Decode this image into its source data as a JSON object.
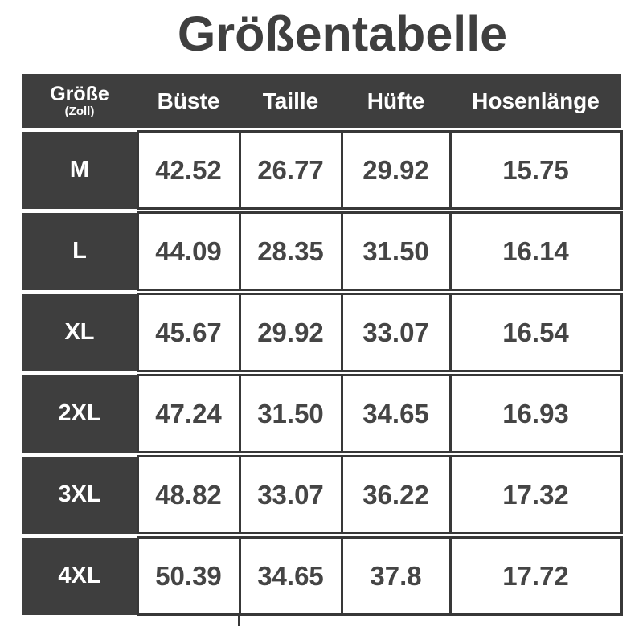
{
  "title": "Größentabelle",
  "table": {
    "header": {
      "size_column": {
        "label": "Größe",
        "unit": "(Zoll)"
      },
      "columns": [
        "Büste",
        "Taille",
        "Hüfte",
        "Hosenlänge"
      ]
    },
    "rows": [
      {
        "size": "M",
        "values": [
          "42.52",
          "26.77",
          "29.92",
          "15.75"
        ]
      },
      {
        "size": "L",
        "values": [
          "44.09",
          "28.35",
          "31.50",
          "16.14"
        ]
      },
      {
        "size": "XL",
        "values": [
          "45.67",
          "29.92",
          "33.07",
          "16.54"
        ]
      },
      {
        "size": "2XL",
        "values": [
          "47.24",
          "31.50",
          "34.65",
          "16.93"
        ]
      },
      {
        "size": "3XL",
        "values": [
          "48.82",
          "33.07",
          "36.22",
          "17.32"
        ]
      },
      {
        "size": "4XL",
        "values": [
          "50.39",
          "34.65",
          "37.8",
          "17.72"
        ]
      }
    ]
  },
  "chart_data": {
    "type": "table",
    "title": "Größentabelle",
    "unit": "Zoll",
    "columns": [
      "Größe (Zoll)",
      "Büste",
      "Taille",
      "Hüfte",
      "Hosenlänge"
    ],
    "rows": [
      [
        "M",
        42.52,
        26.77,
        29.92,
        15.75
      ],
      [
        "L",
        44.09,
        28.35,
        31.5,
        16.14
      ],
      [
        "XL",
        45.67,
        29.92,
        33.07,
        16.54
      ],
      [
        "2XL",
        47.24,
        31.5,
        34.65,
        16.93
      ],
      [
        "3XL",
        48.82,
        33.07,
        36.22,
        17.32
      ],
      [
        "4XL",
        50.39,
        34.65,
        37.8,
        17.72
      ]
    ]
  },
  "colors": {
    "dark": "#3e3e3e",
    "line": "#383838",
    "num": "#454545",
    "title": "#3f3f3f",
    "bg": "#ffffff"
  }
}
